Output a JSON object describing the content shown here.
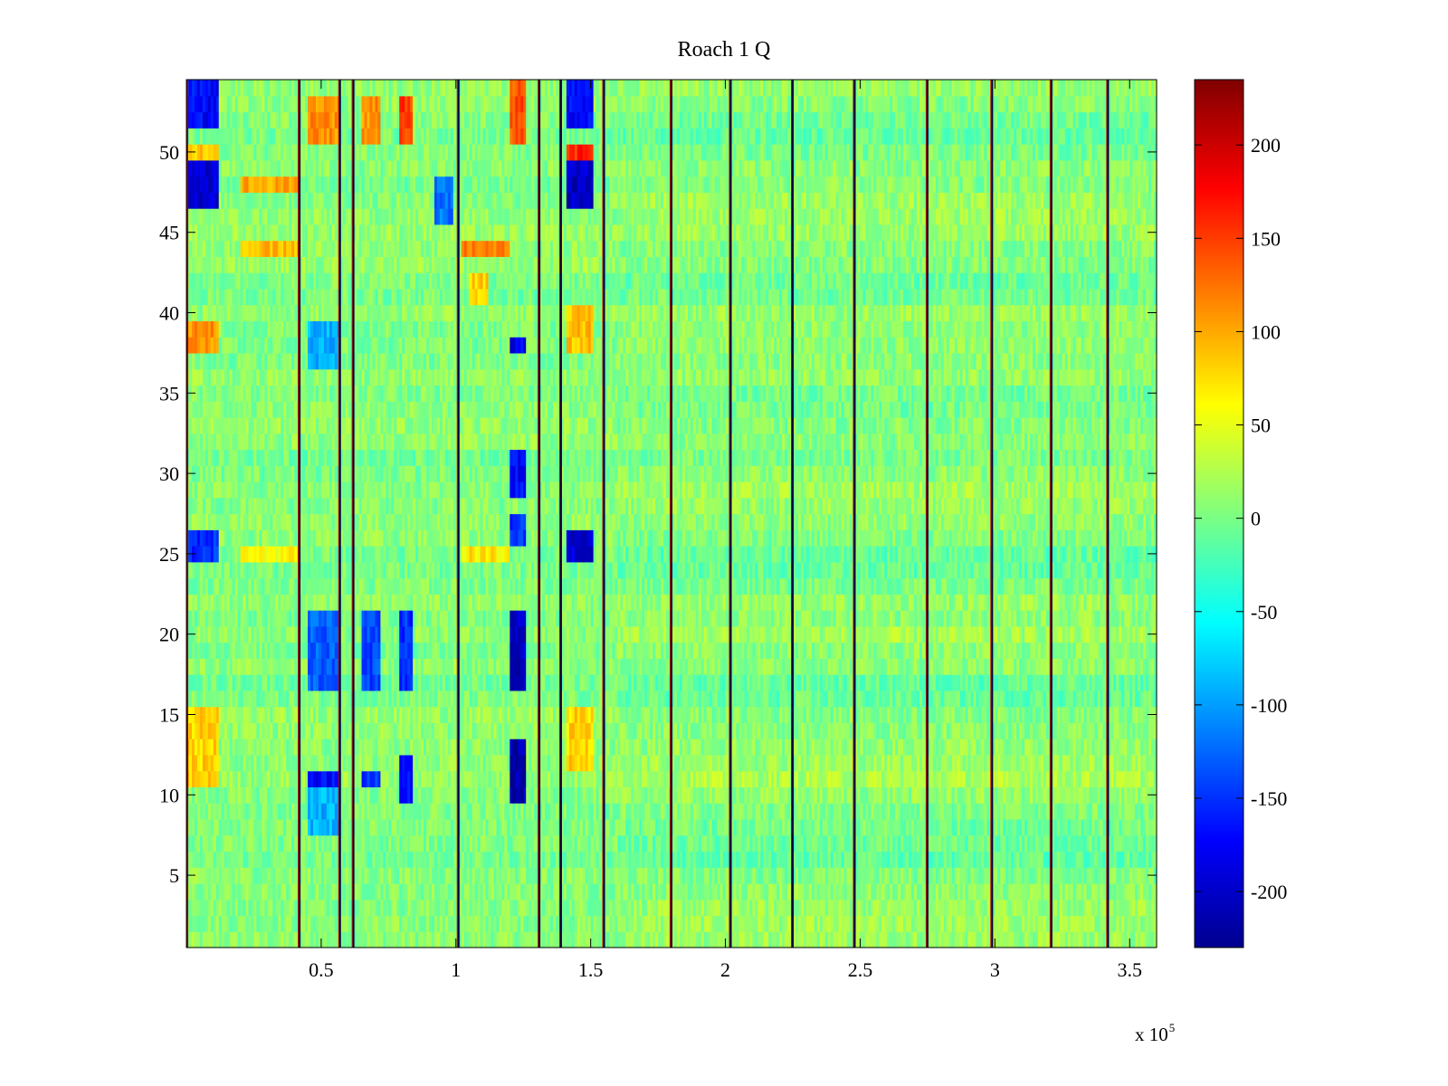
{
  "chart_data": {
    "type": "heatmap",
    "title": "Roach 1 Q",
    "xlabel": "",
    "ylabel": "",
    "x_exponent_label": "x 10",
    "x_exponent_power": "5",
    "xlim": [
      0,
      3.6
    ],
    "ylim": [
      0.5,
      54.5
    ],
    "xticks": [
      0.5,
      1,
      1.5,
      2,
      2.5,
      3,
      3.5
    ],
    "xtick_labels": [
      "0.5",
      "1",
      "1.5",
      "2",
      "2.5",
      "3",
      "3.5"
    ],
    "yticks": [
      5,
      10,
      15,
      20,
      25,
      30,
      35,
      40,
      45,
      50
    ],
    "ytick_labels": [
      "5",
      "10",
      "15",
      "20",
      "25",
      "30",
      "35",
      "40",
      "45",
      "50"
    ],
    "colorbar": {
      "colormap": "jet",
      "clim": [
        -230,
        235
      ],
      "ticks": [
        -200,
        -150,
        -100,
        -50,
        0,
        50,
        100,
        150,
        200
      ],
      "tick_labels": [
        "-200",
        "-150",
        "-100",
        "-50",
        "0",
        "50",
        "100",
        "150",
        "200"
      ]
    },
    "n_rows": 54,
    "background_value": 5,
    "noise_amplitude": 22,
    "segment_boundaries_x1e5": [
      0.42,
      0.57,
      0.62,
      1.01,
      1.31,
      1.39,
      1.55,
      1.8,
      2.02,
      2.25,
      2.48,
      2.75,
      2.99,
      3.21,
      3.42
    ],
    "regions": [
      {
        "x": [
          0.0,
          0.12
        ],
        "rows": [
          52,
          54
        ],
        "value": -170
      },
      {
        "x": [
          0.0,
          0.12
        ],
        "rows": [
          47,
          49
        ],
        "value": -190
      },
      {
        "x": [
          0.0,
          0.12
        ],
        "rows": [
          50,
          50
        ],
        "value": 90
      },
      {
        "x": [
          0.0,
          0.12
        ],
        "rows": [
          25,
          26
        ],
        "value": -150
      },
      {
        "x": [
          0.0,
          0.12
        ],
        "rows": [
          38,
          39
        ],
        "value": 110
      },
      {
        "x": [
          0.0,
          0.12
        ],
        "rows": [
          11,
          15
        ],
        "value": 80
      },
      {
        "x": [
          0.2,
          0.42
        ],
        "rows": [
          48,
          48
        ],
        "value": 100
      },
      {
        "x": [
          0.2,
          0.42
        ],
        "rows": [
          44,
          44
        ],
        "value": 90
      },
      {
        "x": [
          0.2,
          0.42
        ],
        "rows": [
          25,
          25
        ],
        "value": 60
      },
      {
        "x": [
          0.45,
          0.57
        ],
        "rows": [
          51,
          53
        ],
        "value": 110
      },
      {
        "x": [
          0.45,
          0.57
        ],
        "rows": [
          17,
          21
        ],
        "value": -130
      },
      {
        "x": [
          0.45,
          0.57
        ],
        "rows": [
          11,
          11
        ],
        "value": -170
      },
      {
        "x": [
          0.45,
          0.57
        ],
        "rows": [
          8,
          10
        ],
        "value": -90
      },
      {
        "x": [
          0.45,
          0.57
        ],
        "rows": [
          37,
          39
        ],
        "value": -90
      },
      {
        "x": [
          0.65,
          0.72
        ],
        "rows": [
          51,
          53
        ],
        "value": 110
      },
      {
        "x": [
          0.65,
          0.72
        ],
        "rows": [
          17,
          21
        ],
        "value": -140
      },
      {
        "x": [
          0.65,
          0.72
        ],
        "rows": [
          11,
          11
        ],
        "value": -150
      },
      {
        "x": [
          0.79,
          0.84
        ],
        "rows": [
          51,
          53
        ],
        "value": 150
      },
      {
        "x": [
          0.79,
          0.84
        ],
        "rows": [
          17,
          21
        ],
        "value": -150
      },
      {
        "x": [
          0.79,
          0.84
        ],
        "rows": [
          10,
          12
        ],
        "value": -170
      },
      {
        "x": [
          0.92,
          0.99
        ],
        "rows": [
          46,
          48
        ],
        "value": -120
      },
      {
        "x": [
          1.02,
          1.2
        ],
        "rows": [
          44,
          44
        ],
        "value": 120
      },
      {
        "x": [
          1.02,
          1.2
        ],
        "rows": [
          25,
          25
        ],
        "value": 70
      },
      {
        "x": [
          1.05,
          1.12
        ],
        "rows": [
          41,
          42
        ],
        "value": 80
      },
      {
        "x": [
          1.2,
          1.26
        ],
        "rows": [
          51,
          54
        ],
        "value": 140
      },
      {
        "x": [
          1.2,
          1.26
        ],
        "rows": [
          29,
          31
        ],
        "value": -170
      },
      {
        "x": [
          1.2,
          1.26
        ],
        "rows": [
          26,
          27
        ],
        "value": -150
      },
      {
        "x": [
          1.2,
          1.26
        ],
        "rows": [
          17,
          21
        ],
        "value": -200
      },
      {
        "x": [
          1.2,
          1.26
        ],
        "rows": [
          10,
          13
        ],
        "value": -210
      },
      {
        "x": [
          1.2,
          1.26
        ],
        "rows": [
          38,
          38
        ],
        "value": -180
      },
      {
        "x": [
          1.41,
          1.51
        ],
        "rows": [
          52,
          54
        ],
        "value": -170
      },
      {
        "x": [
          1.41,
          1.51
        ],
        "rows": [
          50,
          50
        ],
        "value": 160
      },
      {
        "x": [
          1.41,
          1.51
        ],
        "rows": [
          47,
          49
        ],
        "value": -200
      },
      {
        "x": [
          1.41,
          1.51
        ],
        "rows": [
          25,
          26
        ],
        "value": -190
      },
      {
        "x": [
          1.41,
          1.51
        ],
        "rows": [
          38,
          40
        ],
        "value": 90
      },
      {
        "x": [
          1.41,
          1.51
        ],
        "rows": [
          12,
          15
        ],
        "value": 80
      }
    ]
  }
}
